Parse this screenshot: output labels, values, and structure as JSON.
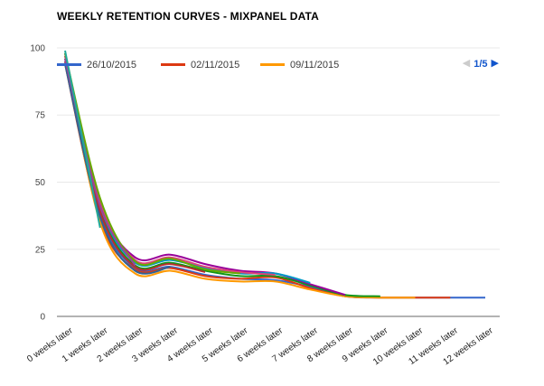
{
  "title": "WEEKLY RETENTION CURVES - MIXPANEL DATA",
  "legend": {
    "visible_items": [
      {
        "label": "26/10/2015",
        "color": "#3366CC"
      },
      {
        "label": "02/11/2015",
        "color": "#DC3912"
      },
      {
        "label": "09/11/2015",
        "color": "#FF9900"
      }
    ],
    "pagination": {
      "current_page": "1/5",
      "prev_glyph": "◀",
      "next_glyph": "▶",
      "prev_enabled": false,
      "next_enabled": true,
      "active_color": "#1155CC",
      "disabled_color": "#CCCCCC"
    }
  },
  "chart_data": {
    "type": "line",
    "title": "WEEKLY RETENTION CURVES - MIXPANEL DATA",
    "xlabel": "",
    "ylabel": "",
    "categories": [
      "0 weeks later",
      "1 weeks later",
      "2 weeks later",
      "3 weeks later",
      "4 weeks later",
      "5 weeks later",
      "6 weeks later",
      "7 weeks later",
      "8 weeks later",
      "9 weeks later",
      "10 weeks later",
      "11 weeks later",
      "12 weeks later"
    ],
    "yticks": [
      0,
      25,
      50,
      75,
      100
    ],
    "ylim": [
      0,
      100
    ],
    "grid": true,
    "grid_color": "#E8E8E8",
    "axis_color": "#B3B3B3",
    "legend_position": "top",
    "legend_note": "legend paginated, page 1 of 5 visible; remaining cohort series names not shown on screen",
    "series": [
      {
        "name": "26/10/2015",
        "color": "#3366CC",
        "values": [
          95,
          38,
          18,
          18.5,
          15.5,
          14,
          13.5,
          11,
          7.5,
          7,
          7,
          7,
          7
        ]
      },
      {
        "name": "02/11/2015",
        "color": "#DC3912",
        "values": [
          94,
          36,
          17.5,
          18,
          15,
          14,
          14.5,
          10.5,
          7.5,
          7,
          7,
          7
        ]
      },
      {
        "name": "09/11/2015",
        "color": "#FF9900",
        "values": [
          96,
          35,
          16,
          17,
          14,
          13,
          13,
          10,
          7.5,
          7,
          7
        ]
      },
      {
        "name": "",
        "color": "#109618",
        "values": [
          97,
          40,
          19,
          20,
          17,
          15,
          15,
          11.5,
          8,
          7.5
        ]
      },
      {
        "name": "",
        "color": "#990099",
        "values": [
          98,
          42,
          22,
          23,
          19.5,
          17,
          16,
          12,
          8
        ]
      },
      {
        "name": "",
        "color": "#0099C6",
        "values": [
          96,
          41,
          20,
          21,
          18,
          16,
          16,
          12.5
        ]
      },
      {
        "name": "",
        "color": "#DD4477",
        "values": [
          97,
          43,
          21,
          22,
          18.5,
          16.5,
          15.5
        ]
      },
      {
        "name": "",
        "color": "#66AA00",
        "values": [
          98,
          44,
          20.5,
          21.5,
          17.5,
          16
        ]
      },
      {
        "name": "",
        "color": "#B82E2E",
        "values": [
          95,
          39,
          18.5,
          19.5,
          16.5
        ]
      },
      {
        "name": "",
        "color": "#316395",
        "values": [
          94,
          37,
          17,
          18.5
        ]
      },
      {
        "name": "",
        "color": "#994499",
        "values": [
          96,
          41,
          19
        ]
      },
      {
        "name": "",
        "color": "#22AA99",
        "values": [
          99,
          33
        ]
      },
      {
        "name": "",
        "color": "#AAAA11",
        "values": [
          97
        ]
      }
    ]
  }
}
